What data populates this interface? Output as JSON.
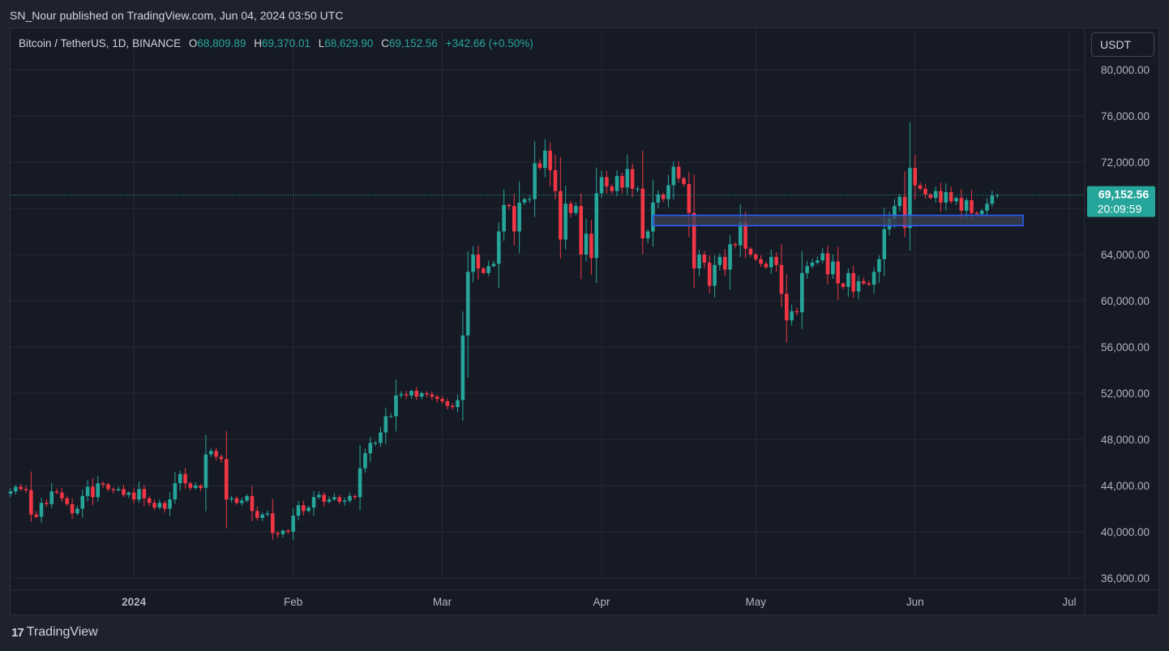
{
  "header": {
    "publisher": "SN_Nour published on TradingView.com, Jun 04, 2024 03:50 UTC"
  },
  "legend": {
    "symbol": "Bitcoin / TetherUS, 1D, BINANCE",
    "o_label": "O",
    "o_value": "68,809.89",
    "h_label": "H",
    "h_value": "69,370.01",
    "l_label": "L",
    "l_value": "68,629.90",
    "c_label": "C",
    "c_value": "69,152.56",
    "change": "+342.66 (+0.50%)"
  },
  "currency_button": "USDT",
  "price_badge": {
    "price": "69,152.56",
    "countdown": "20:09:59"
  },
  "footer": {
    "brand": "TradingView",
    "logo_icon": "tradingview-logo-icon"
  },
  "colors": {
    "up": "#26a69a",
    "down": "#f23645",
    "background": "#161a25",
    "grid": "#262a35",
    "zone_fill": "#3b4055",
    "zone_border": "#2962ff"
  },
  "chart_data": {
    "type": "candlestick",
    "y_ticks": [
      "80,000.00",
      "76,000.00",
      "72,000.00",
      "68,000.00",
      "64,000.00",
      "60,000.00",
      "56,000.00",
      "52,000.00",
      "48,000.00",
      "44,000.00",
      "40,000.00",
      "36,000.00"
    ],
    "y_tick_values": [
      80000,
      76000,
      72000,
      68000,
      64000,
      60000,
      56000,
      52000,
      48000,
      44000,
      40000,
      36000
    ],
    "ylim": [
      35000,
      82000
    ],
    "x_ticks": [
      {
        "label": "2024",
        "day": 0
      },
      {
        "label": "Feb",
        "day": 31
      },
      {
        "label": "Mar",
        "day": 60
      },
      {
        "label": "Apr",
        "day": 91
      },
      {
        "label": "May",
        "day": 121
      },
      {
        "label": "Jun",
        "day": 152
      },
      {
        "label": "Jul",
        "day": 182
      }
    ],
    "x_day_range": [
      -24,
      185
    ],
    "first_candle_day": -24,
    "last_price": 69152.56,
    "resistance_zone": {
      "day_start": 101,
      "day_end": 173,
      "price_low": 66500,
      "price_high": 67400
    },
    "closes": [
      43500,
      43900,
      43700,
      43600,
      41500,
      41300,
      42500,
      42400,
      43500,
      43400,
      42900,
      42400,
      41600,
      42000,
      43100,
      43900,
      43000,
      44200,
      44100,
      43700,
      43600,
      43700,
      43200,
      43400,
      42800,
      43700,
      42900,
      42500,
      42100,
      42500,
      42000,
      42800,
      44200,
      45000,
      44200,
      43800,
      44000,
      43800,
      46700,
      47000,
      46500,
      46300,
      42800,
      42900,
      42500,
      42700,
      43100,
      41800,
      41200,
      41500,
      41600,
      39900,
      39800,
      40100,
      40000,
      41400,
      42300,
      41800,
      42100,
      43000,
      43200,
      42600,
      42800,
      43000,
      42600,
      42700,
      43100,
      43000,
      45500,
      46800,
      47700,
      47700,
      48600,
      50000,
      50000,
      51800,
      51900,
      51800,
      52200,
      51700,
      52000,
      51900,
      51700,
      51500,
      51300,
      50900,
      50800,
      51400,
      57000,
      62500,
      64000,
      62800,
      62400,
      63000,
      63200,
      66000,
      68300,
      68200,
      66000,
      68500,
      68800,
      68800,
      71900,
      71500,
      73000,
      71300,
      69500,
      65300,
      68400,
      67600,
      68200,
      64000,
      65800,
      63700,
      69300,
      70700,
      69900,
      69500,
      70800,
      69800,
      71400,
      69700,
      69700,
      65400,
      66000,
      68500,
      69200,
      68800,
      70000,
      71600,
      70600,
      70100,
      67600,
      62800,
      64000,
      63300,
      61300,
      63100,
      63800,
      62700,
      64900,
      64800,
      66800,
      64500,
      64000,
      63600,
      63200,
      62900,
      63800,
      63100,
      60600,
      58300,
      59100,
      59000,
      62400,
      63000,
      63300,
      63500,
      64100,
      62300,
      63400,
      61500,
      61200,
      62400,
      60800,
      61700,
      61500,
      61400,
      62500,
      63600,
      66200,
      67100,
      68200,
      69000,
      66300,
      71500,
      70000,
      69700,
      69200,
      68900,
      69500,
      68500,
      69400,
      68600,
      68900,
      67800,
      68700,
      67600,
      67500,
      67800,
      68400,
      69100,
      69152.56
    ]
  }
}
